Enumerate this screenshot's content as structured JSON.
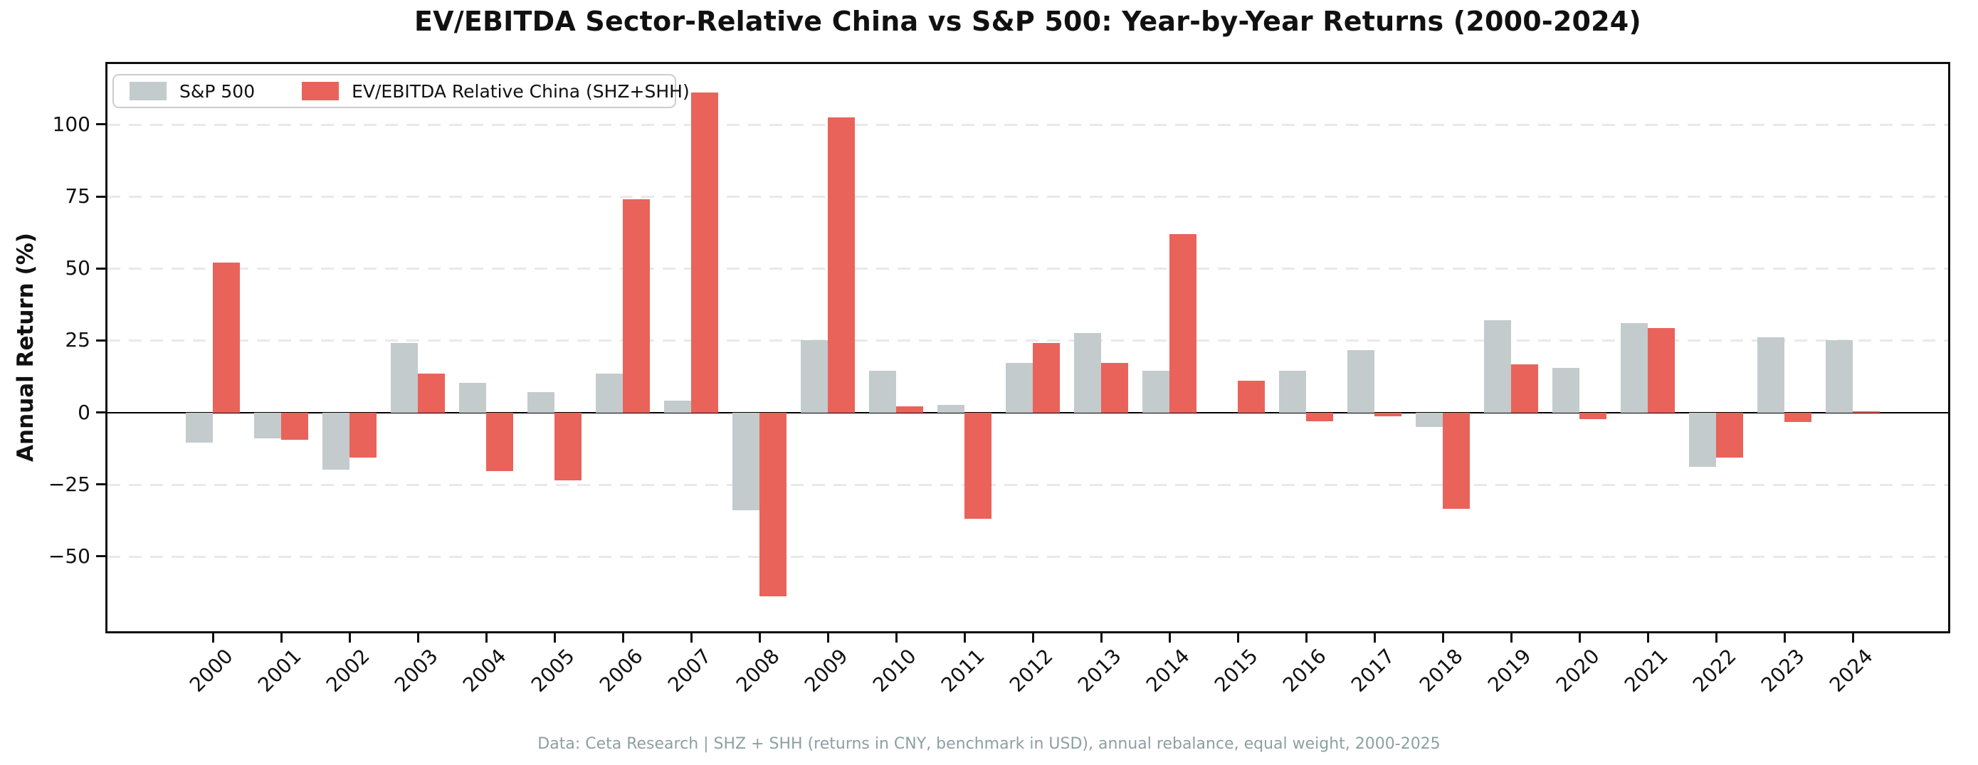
{
  "chart_data": {
    "type": "bar",
    "title": "EV/EBITDA Sector-Relative China vs S&P 500: Year-by-Year Returns (2000-2024)",
    "xlabel": "",
    "ylabel": "Annual Return (%)",
    "categories": [
      "2000",
      "2001",
      "2002",
      "2003",
      "2004",
      "2005",
      "2006",
      "2007",
      "2008",
      "2009",
      "2010",
      "2011",
      "2012",
      "2013",
      "2014",
      "2015",
      "2016",
      "2017",
      "2018",
      "2019",
      "2020",
      "2021",
      "2022",
      "2023",
      "2024"
    ],
    "series": [
      {
        "name": "S&P 500",
        "color": "#C3CBCD",
        "values": [
          -10.5,
          -9.0,
          -20.0,
          24.0,
          10.3,
          7.0,
          13.6,
          4.0,
          -34.0,
          25.0,
          14.5,
          2.5,
          17.2,
          27.5,
          14.5,
          0.0,
          14.5,
          21.6,
          -5.0,
          32.0,
          15.5,
          31.0,
          -19.0,
          26.0,
          25.2
        ]
      },
      {
        "name": "EV/EBITDA Relative China (SHZ+SHH)",
        "color": "#E9635A",
        "values": [
          52.0,
          -9.5,
          -15.8,
          13.6,
          -20.5,
          -23.5,
          74.0,
          111.0,
          -64.0,
          102.5,
          2.0,
          -37.0,
          24.0,
          17.2,
          62.0,
          11.0,
          -3.0,
          -1.3,
          -33.5,
          16.6,
          -2.4,
          29.2,
          -15.7,
          -3.3,
          0.4
        ]
      }
    ],
    "ylim": [
      -76,
      121
    ],
    "yticks": [
      {
        "value": 100,
        "label": "100"
      },
      {
        "value": 75,
        "label": "75"
      },
      {
        "value": 50,
        "label": "50"
      },
      {
        "value": 25,
        "label": "25"
      },
      {
        "value": 0,
        "label": "0"
      },
      {
        "value": -25,
        "label": "−25"
      },
      {
        "value": -50,
        "label": "−50"
      }
    ],
    "grid": "horizontal dashed at yticks, solid black line at 0",
    "legend_position": "upper left"
  },
  "footer": {
    "text": "Data: Ceta Research | SHZ + SHH (returns in CNY, benchmark in USD), annual rebalance, equal weight, 2000-2025"
  },
  "colors": {
    "background": "#ffffff",
    "spine": "#0f0f0f",
    "gridline": "#e9e9e9",
    "footer_text": "#8d9fa0",
    "sp500_bar": "#C3CBCD",
    "china_bar": "#E9635A"
  }
}
